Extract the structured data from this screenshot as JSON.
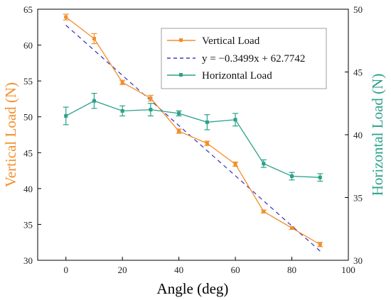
{
  "chart_data": {
    "type": "line",
    "x": [
      0,
      10,
      20,
      30,
      40,
      50,
      60,
      70,
      80,
      90
    ],
    "xlabel": "Angle (deg)",
    "xlim": [
      -10,
      100
    ],
    "xticks": [
      0,
      20,
      40,
      60,
      80,
      100
    ],
    "y_left": {
      "label": "Vertical Load (N)",
      "ylim": [
        30,
        65
      ],
      "ticks": [
        30,
        35,
        40,
        45,
        50,
        55,
        60,
        65
      ],
      "color": "#f28e2b"
    },
    "y_right": {
      "label": "Horizontal Load (N)",
      "ylim": [
        30,
        50
      ],
      "ticks": [
        30,
        35,
        40,
        45,
        50
      ],
      "color": "#2aa189"
    },
    "series": [
      {
        "name": "Vertical Load",
        "axis": "left",
        "color": "#f28e2b",
        "style": "line-marker",
        "values": [
          63.9,
          60.9,
          54.8,
          52.6,
          48.0,
          46.3,
          43.4,
          36.8,
          34.5,
          32.2
        ],
        "errors": [
          0.4,
          0.7,
          0.3,
          0.4,
          0.3,
          0.3,
          0.3,
          0.2,
          0.2,
          0.3
        ]
      },
      {
        "name": "y = −0.3499x + 62.7742",
        "axis": "left",
        "color": "#3d3dc8",
        "style": "dashed-fit",
        "slope": -0.3499,
        "intercept": 62.7742
      },
      {
        "name": "Horizontal Load",
        "axis": "right",
        "color": "#2aa189",
        "style": "line-marker",
        "values": [
          41.5,
          42.7,
          41.9,
          42.0,
          41.7,
          41.0,
          41.2,
          37.7,
          36.7,
          36.6
        ],
        "errors": [
          0.7,
          0.6,
          0.4,
          0.5,
          0.2,
          0.6,
          0.5,
          0.3,
          0.3,
          0.3
        ]
      }
    ],
    "legend": "top-right"
  }
}
